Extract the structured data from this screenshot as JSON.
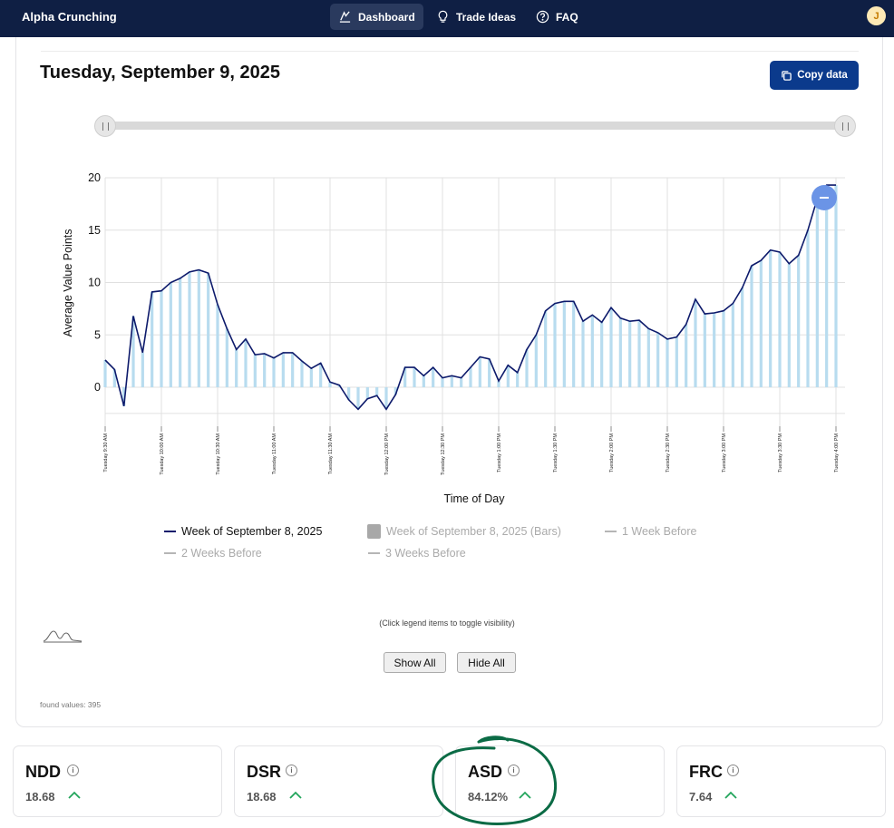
{
  "app": {
    "name": "Alpha Crunching",
    "avatar_initial": "J"
  },
  "nav": [
    {
      "label": "Dashboard",
      "icon": "chart-icon",
      "active": true
    },
    {
      "label": "Trade Ideas",
      "icon": "lightbulb-icon",
      "active": false
    },
    {
      "label": "FAQ",
      "icon": "help-circle-icon",
      "active": false
    }
  ],
  "header": {
    "date": "Tuesday, September 9, 2025",
    "copy_label": "Copy data"
  },
  "chart_data": {
    "type": "line",
    "xlabel": "Time of Day",
    "ylabel": "Average Value Points",
    "ylim": [
      -3,
      20
    ],
    "yticks": [
      0,
      5,
      10,
      15,
      20
    ],
    "grid": true,
    "xticks": [
      "Tuesday 9:30 AM",
      "Tuesday 10:00 AM",
      "Tuesday 10:30 AM",
      "Tuesday 11:00 AM",
      "Tuesday 11:30 AM",
      "Tuesday 12:00 PM",
      "Tuesday 12:30 PM",
      "Tuesday 1:00 PM",
      "Tuesday 1:30 PM",
      "Tuesday 2:00 PM",
      "Tuesday 2:30 PM",
      "Tuesday 3:00 PM",
      "Tuesday 3:30 PM",
      "Tuesday 4:00 PM"
    ],
    "x_minutes_start": 0,
    "series": [
      {
        "name": "Week of September 8, 2025",
        "color": "#0d1a6b",
        "visible": true,
        "values": [
          2.6,
          1.7,
          -1.8,
          6.8,
          3.3,
          9.1,
          9.2,
          10.0,
          10.4,
          11.0,
          11.2,
          10.9,
          7.9,
          5.6,
          3.6,
          4.6,
          3.1,
          3.2,
          2.8,
          3.3,
          3.3,
          2.5,
          1.8,
          2.3,
          0.5,
          0.2,
          -1.2,
          -2.1,
          -1.1,
          -0.8,
          -2.1,
          -0.7,
          1.9,
          1.9,
          1.1,
          1.9,
          0.9,
          1.1,
          0.9,
          1.9,
          2.9,
          2.7,
          0.6,
          2.1,
          1.4,
          3.6,
          5.0,
          7.3,
          8.0,
          8.2,
          8.2,
          6.3,
          6.9,
          6.2,
          7.6,
          6.6,
          6.3,
          6.4,
          5.6,
          5.2,
          4.6,
          4.8,
          6.0,
          8.4,
          7.0,
          7.1,
          7.3,
          8.0,
          9.5,
          11.6,
          12.1,
          13.1,
          12.9,
          11.8,
          12.6,
          15.0,
          18.0,
          19.3,
          19.3
        ]
      },
      {
        "name": "Week of September 8, 2025 (Bars)",
        "color": "#b8dcef",
        "visible": true
      },
      {
        "name": "1 Week Before",
        "color": "#aaaaaa",
        "visible": false
      },
      {
        "name": "2 Weeks Before",
        "color": "#aaaaaa",
        "visible": false
      },
      {
        "name": "3 Weeks Before",
        "color": "#aaaaaa",
        "visible": false
      }
    ]
  },
  "hint": "(Click legend items to toggle visibility)",
  "controls": {
    "show_all": "Show All",
    "hide_all": "Hide All"
  },
  "found_values": "found values: 395",
  "metrics": [
    {
      "label": "NDD",
      "value": "18.68",
      "trend": "up"
    },
    {
      "label": "DSR",
      "value": "18.68",
      "trend": "up"
    },
    {
      "label": "ASD",
      "value": "84.12%",
      "trend": "up"
    },
    {
      "label": "FRC",
      "value": "7.64",
      "trend": "up"
    }
  ],
  "colors": {
    "nav_bg": "#0f1f44",
    "accent": "#0b3a8c",
    "trend_up": "#22a55b",
    "annotation": "#0b6b45"
  }
}
